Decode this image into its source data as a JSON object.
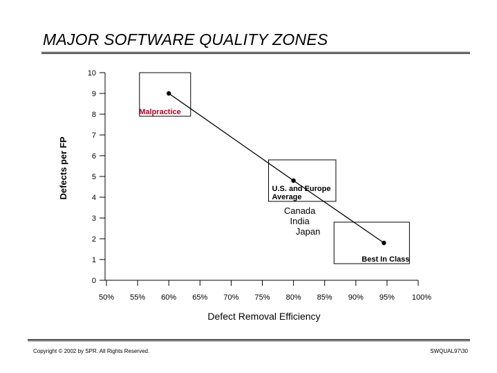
{
  "slide": {
    "title": "MAJOR SOFTWARE QUALITY ZONES",
    "copyright": "Copyright © 2002 by SPR.  All Rights Reserved.",
    "slide_code": "SWQUAL97\\30"
  },
  "chart_data": {
    "type": "line",
    "xlabel": "Defect Removal Efficiency",
    "ylabel": "Defects per FP",
    "x_ticks": [
      50,
      55,
      60,
      65,
      70,
      75,
      80,
      85,
      90,
      95,
      100
    ],
    "x_tick_labels": [
      "50%",
      "55%",
      "60%",
      "65%",
      "70%",
      "75%",
      "80%",
      "85%",
      "90%",
      "95%",
      "100%"
    ],
    "y_ticks": [
      0,
      1,
      2,
      3,
      4,
      5,
      6,
      7,
      8,
      9,
      10
    ],
    "y_tick_labels": [
      "0",
      "1",
      "2",
      "3",
      "4",
      "5",
      "6",
      "7",
      "8",
      "9",
      "10"
    ],
    "xlim": [
      50,
      100
    ],
    "ylim": [
      0,
      10
    ],
    "grid": false,
    "series": [
      {
        "x": [
          60,
          80,
          94.5
        ],
        "y": [
          9,
          4.8,
          1.8
        ]
      }
    ],
    "zones": [
      {
        "label": "Malpractice",
        "x_range": [
          55.3,
          63.5
        ],
        "y_range": [
          7.9,
          10
        ],
        "color": "#b00020"
      },
      {
        "label": "U.S. and Europe\nAverage",
        "x_range": [
          76,
          86.8
        ],
        "y_range": [
          3.8,
          5.8
        ],
        "color": "#000000"
      },
      {
        "label": "Best In Class",
        "x_range": [
          86.5,
          98.6
        ],
        "y_range": [
          0.8,
          2.8
        ],
        "color": "#000000"
      }
    ],
    "annotations": [
      {
        "text": "Canada\nIndia\n    Japan",
        "x": 81,
        "y": 3.2
      }
    ]
  }
}
